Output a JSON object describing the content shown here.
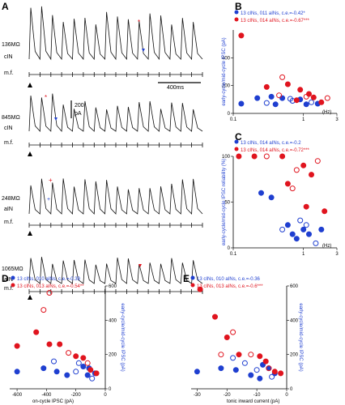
{
  "colors": {
    "blue": "#1f3fd0",
    "red": "#e0141e",
    "trace": "#111111"
  },
  "panel_a": {
    "letter": "A",
    "traces": [
      {
        "resistance": "136MΩ",
        "cell": "cIN",
        "stim": "m.f."
      },
      {
        "resistance": "845MΩ",
        "cell": "cIN",
        "stim": "m.f."
      },
      {
        "resistance": "248MΩ",
        "cell": "aIN",
        "stim": "m.f."
      },
      {
        "resistance": "1065MΩ",
        "cell": "aIN",
        "stim": "m.f."
      }
    ],
    "scale_time": "400ms",
    "scale_current_value": "200",
    "scale_current_unit": "pA"
  },
  "chart_data": [
    {
      "id": "B",
      "type": "scatter",
      "legend": [
        "13 cINs, 011 aINs, c.e.=-0.42*",
        "13 cINs, 014 aINs, c.e.=-0.67***"
      ],
      "ylabel": "early-cycle/mid-cycle IPSC (pA)",
      "xlabel": "(Hz)",
      "xscale": "log",
      "xlim": [
        0.1,
        3
      ],
      "ylim": [
        0,
        600
      ],
      "xticks": [
        "0.1",
        "1",
        "3"
      ],
      "yticks": [
        "0",
        "200",
        "400"
      ],
      "series": [
        {
          "color": "blue",
          "points": [
            [
              0.13,
              70
            ],
            [
              0.22,
              110
            ],
            [
              0.3,
              75
            ],
            [
              0.4,
              65
            ],
            [
              0.5,
              110
            ],
            [
              0.7,
              90
            ],
            [
              0.9,
              100
            ],
            [
              1.1,
              65
            ],
            [
              1.3,
              80
            ],
            [
              1.6,
              70
            ],
            [
              0.35,
              120
            ],
            [
              0.65,
              105
            ]
          ]
        },
        {
          "color": "red",
          "points": [
            [
              0.13,
              560
            ],
            [
              0.3,
              190
            ],
            [
              0.45,
              130
            ],
            [
              0.6,
              210
            ],
            [
              0.9,
              170
            ],
            [
              1.1,
              120
            ],
            [
              1.4,
              115
            ],
            [
              1.8,
              80
            ],
            [
              2.2,
              110
            ],
            [
              0.8,
              95
            ],
            [
              1.2,
              140
            ],
            [
              0.5,
              260
            ]
          ]
        }
      ]
    },
    {
      "id": "C",
      "type": "scatter",
      "legend": [
        "13 cINs, 014 aINs, c.e.=-0.2",
        "13 cINs, 014 aINs, c.e.=-0.72***"
      ],
      "ylabel": "early-cycle/mid-cycle IPSC reliability (%)",
      "xlabel": "(Hz)",
      "xscale": "log",
      "xlim": [
        0.1,
        3
      ],
      "ylim": [
        0,
        100
      ],
      "xticks": [
        "0.1",
        "1",
        "3"
      ],
      "yticks": [
        "0",
        "50",
        "100"
      ],
      "series": [
        {
          "color": "blue",
          "points": [
            [
              0.25,
              60
            ],
            [
              0.35,
              55
            ],
            [
              0.5,
              20
            ],
            [
              0.6,
              25
            ],
            [
              0.7,
              15
            ],
            [
              0.9,
              30
            ],
            [
              1.0,
              20
            ],
            [
              1.2,
              15
            ],
            [
              1.5,
              5
            ],
            [
              1.8,
              20
            ],
            [
              0.8,
              10
            ],
            [
              1.1,
              25
            ]
          ]
        },
        {
          "color": "red",
          "points": [
            [
              0.12,
              100
            ],
            [
              0.2,
              100
            ],
            [
              0.3,
              100
            ],
            [
              0.5,
              100
            ],
            [
              0.6,
              70
            ],
            [
              0.8,
              85
            ],
            [
              1.0,
              90
            ],
            [
              1.3,
              80
            ],
            [
              1.6,
              95
            ],
            [
              2.0,
              40
            ],
            [
              1.1,
              45
            ],
            [
              0.7,
              65
            ]
          ]
        }
      ]
    },
    {
      "id": "D",
      "type": "scatter",
      "legend": [
        "13 cINs, 010 aINs, c.e.=-0.39",
        "13 cINs, 013 aINs, c.e.=-0.54**"
      ],
      "ylabel": "early-cycle/mid-cycle IPSC (pA)",
      "xlabel": "on-cycle IPSC (pA)",
      "xlim": [
        -650,
        0
      ],
      "ylim": [
        0,
        600
      ],
      "xticks": [
        "-600",
        "-400",
        "-200",
        "0"
      ],
      "yticks": [
        "0",
        "200",
        "400",
        "600"
      ],
      "series": [
        {
          "color": "blue",
          "points": [
            [
              -600,
              100
            ],
            [
              -420,
              120
            ],
            [
              -350,
              160
            ],
            [
              -330,
              100
            ],
            [
              -260,
              80
            ],
            [
              -200,
              100
            ],
            [
              -150,
              130
            ],
            [
              -110,
              120
            ],
            [
              -90,
              60
            ],
            [
              -70,
              90
            ],
            [
              -120,
              80
            ],
            [
              -180,
              150
            ]
          ]
        },
        {
          "color": "red",
          "points": [
            [
              -600,
              250
            ],
            [
              -470,
              330
            ],
            [
              -420,
              460
            ],
            [
              -380,
              260
            ],
            [
              -310,
              260
            ],
            [
              -250,
              210
            ],
            [
              -200,
              190
            ],
            [
              -150,
              180
            ],
            [
              -120,
              150
            ],
            [
              -100,
              110
            ],
            [
              -60,
              90
            ],
            [
              -380,
              560
            ]
          ]
        }
      ]
    },
    {
      "id": "E",
      "type": "scatter",
      "legend": [
        "13 cINs, 010 aINs, c.e.=-0.36",
        "13 cINs, 013 aINs, c.e.=-0.6***"
      ],
      "ylabel": "early-cycle/mid-cycle IPSC (pA)",
      "xlabel": "tonic inward current (pA)",
      "xlim": [
        -32,
        0
      ],
      "ylim": [
        0,
        600
      ],
      "xticks": [
        "-30",
        "-20",
        "-10",
        "0"
      ],
      "yticks": [
        "0",
        "200",
        "400",
        "600"
      ],
      "series": [
        {
          "color": "blue",
          "points": [
            [
              -30,
              100
            ],
            [
              -22,
              120
            ],
            [
              -18,
              180
            ],
            [
              -17,
              110
            ],
            [
              -12,
              80
            ],
            [
              -10,
              110
            ],
            [
              -8,
              140
            ],
            [
              -6,
              120
            ],
            [
              -5,
              70
            ],
            [
              -4,
              90
            ],
            [
              -9,
              60
            ],
            [
              -14,
              150
            ]
          ]
        },
        {
          "color": "red",
          "points": [
            [
              -29,
              580
            ],
            [
              -24,
              420
            ],
            [
              -22,
              200
            ],
            [
              -20,
              300
            ],
            [
              -16,
              200
            ],
            [
              -12,
              200
            ],
            [
              -9,
              190
            ],
            [
              -7,
              160
            ],
            [
              -6,
              120
            ],
            [
              -4,
              100
            ],
            [
              -2,
              90
            ],
            [
              -18,
              330
            ]
          ]
        }
      ]
    }
  ]
}
